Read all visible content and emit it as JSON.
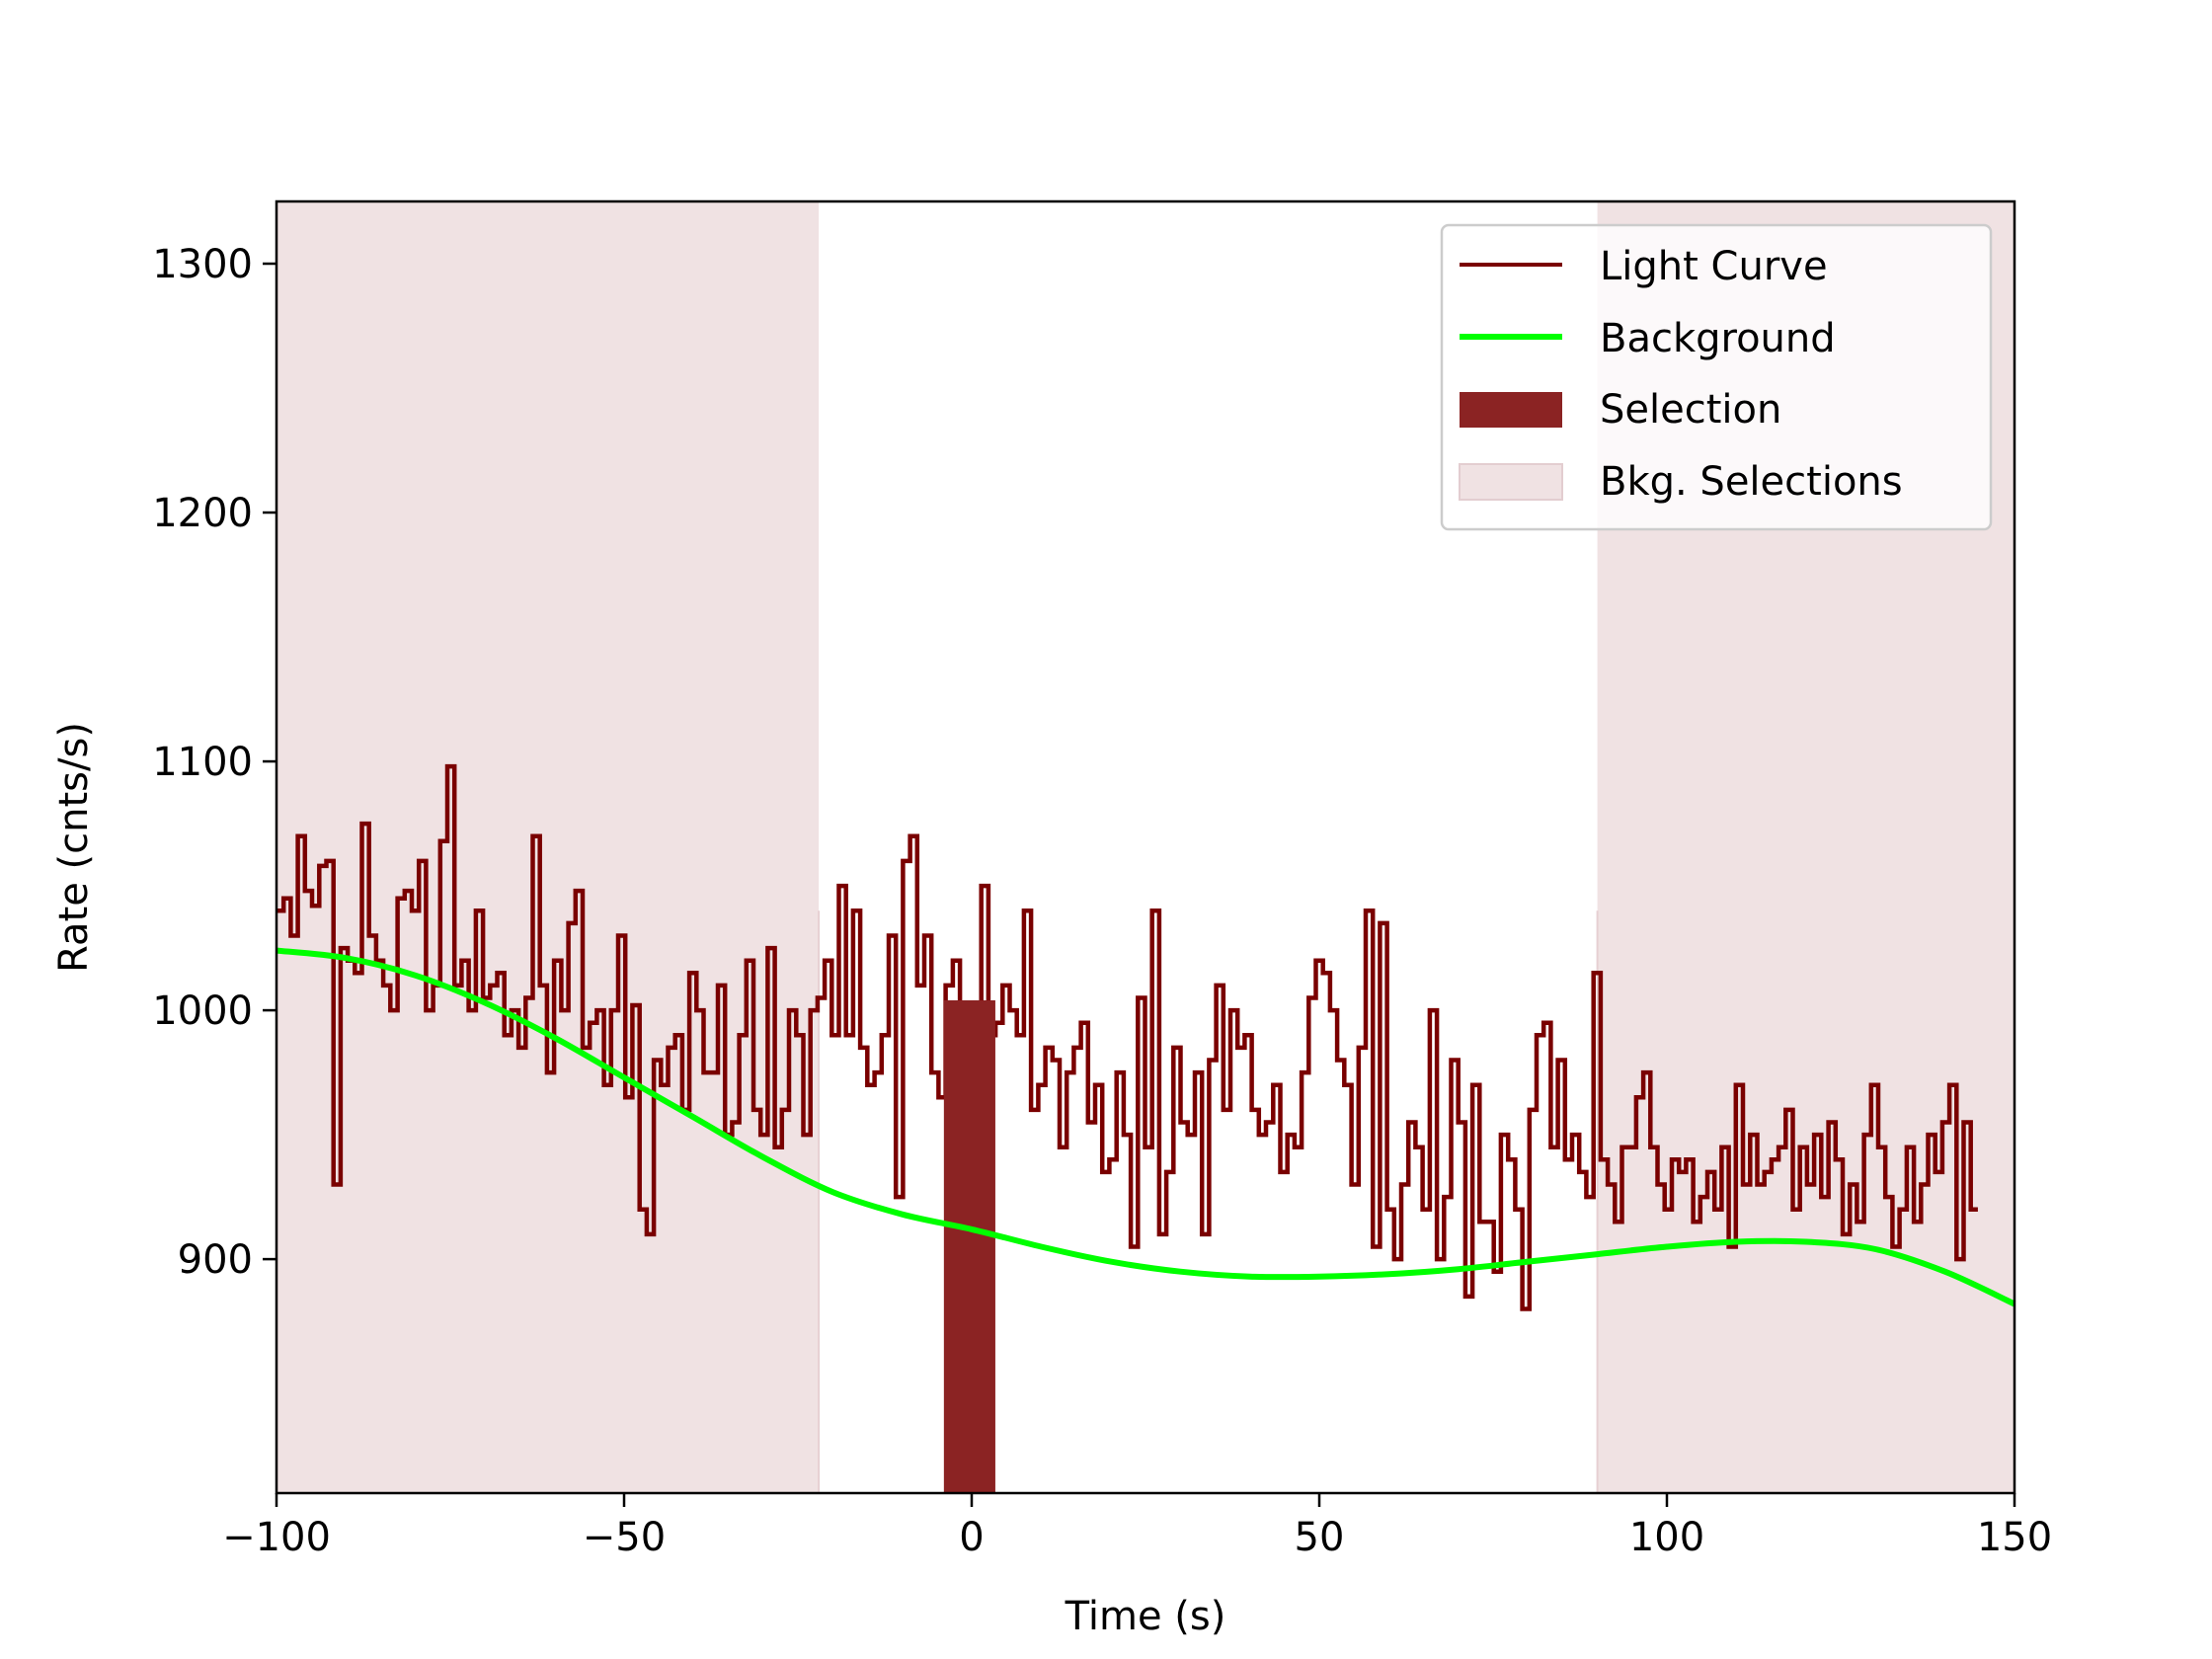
{
  "chart_data": {
    "type": "line",
    "xlabel": "Time (s)",
    "ylabel": "Rate (cnts/s)",
    "xlim": [
      -100,
      150
    ],
    "ylim": [
      806,
      1325
    ],
    "x_ticks": [
      -100,
      -50,
      0,
      50,
      100,
      150
    ],
    "x_tick_labels": [
      "−100",
      "−50",
      "0",
      "50",
      "100",
      "150"
    ],
    "y_ticks": [
      900,
      1000,
      1100,
      1200,
      1300
    ],
    "y_tick_labels": [
      "900",
      "1000",
      "1100",
      "1200",
      "1300"
    ],
    "grid": false,
    "legend": "top-right",
    "colors": {
      "light_curve": "#7a0000",
      "background": "#00ff00",
      "selection": "#8b2323",
      "bkg_selection": "#f0e2e3"
    },
    "legend_entries": [
      "Light Curve",
      "Background",
      "Selection",
      "Bkg. Selections"
    ],
    "selection": {
      "name": "Selection",
      "range": [
        -4,
        3.4
      ]
    },
    "bkg_selections": {
      "name": "Bkg. Selections",
      "ranges": [
        [
          -100,
          -22
        ],
        [
          90,
          150
        ]
      ]
    },
    "series": [
      {
        "name": "Light Curve",
        "style": "step",
        "bin_start": -100,
        "bin_width": 1.024,
        "values": [
          1040,
          1045,
          1030,
          1070,
          1048,
          1042,
          1058,
          1060,
          930,
          1025,
          1020,
          1015,
          1075,
          1030,
          1020,
          1010,
          1000,
          1045,
          1048,
          1040,
          1060,
          1000,
          1010,
          1068,
          1098,
          1010,
          1020,
          1000,
          1040,
          1005,
          1010,
          1015,
          990,
          1000,
          985,
          1005,
          1070,
          1010,
          975,
          1020,
          1000,
          1035,
          1048,
          985,
          995,
          1000,
          970,
          1000,
          1030,
          965,
          1002,
          920,
          910,
          980,
          970,
          985,
          990,
          960,
          1015,
          1000,
          975,
          975,
          1010,
          950,
          955,
          990,
          1020,
          960,
          950,
          1025,
          945,
          960,
          1000,
          990,
          950,
          1000,
          1005,
          1020,
          990,
          1050,
          990,
          1040,
          985,
          970,
          975,
          990,
          1030,
          925,
          1060,
          1070,
          1010,
          1030,
          975,
          965,
          1010,
          1020,
          985,
          970,
          975,
          1050,
          990,
          995,
          1010,
          1000,
          990,
          1040,
          960,
          970,
          985,
          980,
          945,
          975,
          985,
          995,
          955,
          970,
          935,
          940,
          975,
          950,
          905,
          1005,
          945,
          1040,
          910,
          935,
          985,
          955,
          950,
          975,
          910,
          980,
          1010,
          960,
          1000,
          985,
          990,
          960,
          950,
          955,
          970,
          935,
          950,
          945,
          975,
          1005,
          1020,
          1015,
          1000,
          980,
          970,
          930,
          985,
          1040,
          905,
          1035,
          920,
          900,
          930,
          955,
          945,
          920,
          1000,
          900,
          925,
          980,
          955,
          885,
          970,
          915,
          915,
          895,
          950,
          940,
          920,
          880,
          960,
          990,
          995,
          945,
          980,
          940,
          950,
          935,
          925,
          1015,
          940,
          930,
          915,
          945,
          945,
          965,
          975,
          945,
          930,
          920,
          940,
          935,
          940,
          915,
          925,
          935,
          920,
          945,
          905,
          970,
          930,
          950,
          930,
          935,
          940,
          945,
          960,
          920,
          945,
          930,
          950,
          925,
          955,
          940,
          910,
          930,
          915,
          950,
          970,
          945,
          925,
          905,
          920,
          945,
          915,
          930,
          950,
          935,
          955,
          970,
          900,
          955,
          920
        ]
      },
      {
        "name": "Background",
        "style": "smooth",
        "x": [
          -100,
          -90,
          -80,
          -70,
          -60,
          -50,
          -40,
          -30,
          -20,
          -10,
          0,
          10,
          20,
          30,
          40,
          50,
          60,
          70,
          80,
          90,
          100,
          110,
          120,
          130,
          140,
          150
        ],
        "values": [
          1024,
          1021,
          1014,
          1003,
          989,
          973,
          957,
          941,
          927,
          918,
          912,
          905,
          899,
          895,
          893,
          893,
          894,
          896,
          899,
          902,
          905,
          907,
          907,
          904,
          895,
          882
        ]
      }
    ]
  }
}
